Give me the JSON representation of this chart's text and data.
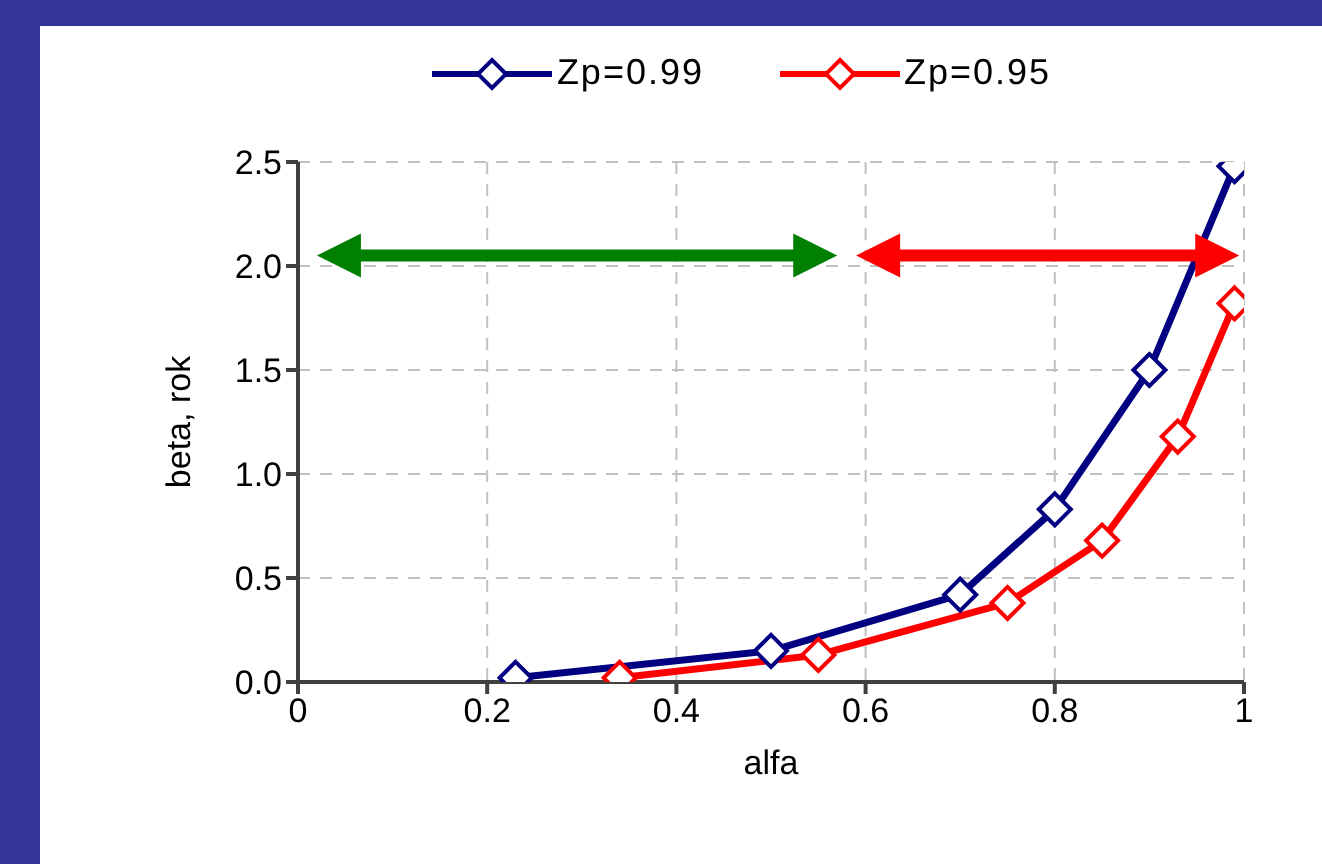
{
  "chart_data": {
    "type": "line",
    "xlabel": "alfa",
    "ylabel": "beta, rok",
    "series": [
      {
        "name": "Zp=0.99",
        "color": "#000080",
        "x": [
          0.23,
          0.5,
          0.7,
          0.8,
          0.9,
          0.99
        ],
        "values": [
          0.02,
          0.15,
          0.42,
          0.83,
          1.5,
          2.48
        ]
      },
      {
        "name": "Zp=0.95",
        "color": "#ff0000",
        "x": [
          0.34,
          0.55,
          0.75,
          0.85,
          0.93,
          0.99
        ],
        "values": [
          0.02,
          0.13,
          0.38,
          0.68,
          1.18,
          1.82
        ]
      }
    ],
    "xlim": [
      0,
      1
    ],
    "xticks": [
      0,
      0.2,
      0.4,
      0.6,
      0.8,
      1
    ],
    "ylim": [
      0,
      2.5
    ],
    "yticks": [
      {
        "value": 0,
        "label": "0.0"
      },
      {
        "value": 0.5,
        "label": "0.5"
      },
      {
        "value": 1,
        "label": "1.0"
      },
      {
        "value": 1.5,
        "label": "1.5"
      },
      {
        "value": 2,
        "label": "2.0"
      },
      {
        "value": 2.5,
        "label": "2.5"
      }
    ],
    "grid": true,
    "legend": "top",
    "marker": "diamond",
    "line_style": "solid"
  }
}
